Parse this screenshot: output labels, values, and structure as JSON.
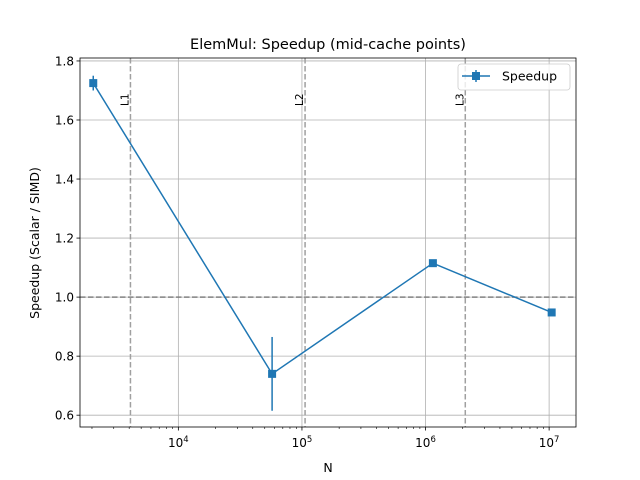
{
  "chart_data": {
    "type": "line",
    "title": "ElemMul: Speedup (mid-cache points)",
    "xlabel": "N",
    "ylabel": "Speedup (Scalar / SIMD)",
    "xscale": "log",
    "xlim": [
      1600,
      16500000
    ],
    "ylim": [
      0.56,
      1.81
    ],
    "grid": true,
    "legend_position": "top-right",
    "x_ticks": [
      {
        "value": 10000,
        "base": "10",
        "exp": "4"
      },
      {
        "value": 100000,
        "base": "10",
        "exp": "5"
      },
      {
        "value": 1000000,
        "base": "10",
        "exp": "6"
      },
      {
        "value": 10000000,
        "base": "10",
        "exp": "7"
      }
    ],
    "y_ticks": [
      {
        "value": 0.6,
        "label": "0.6"
      },
      {
        "value": 0.8,
        "label": "0.8"
      },
      {
        "value": 1.0,
        "label": "1.0"
      },
      {
        "value": 1.2,
        "label": "1.2"
      },
      {
        "value": 1.4,
        "label": "1.4"
      },
      {
        "value": 1.6,
        "label": "1.6"
      },
      {
        "value": 1.8,
        "label": "1.8"
      }
    ],
    "series": [
      {
        "name": "Speedup",
        "color": "#1f77b4",
        "marker": "square",
        "x": [
          2048,
          57344,
          1146880,
          10485760
        ],
        "y": [
          1.725,
          0.74,
          1.115,
          0.948
        ],
        "yerr": [
          0.025,
          0.125,
          0.01,
          0.01
        ]
      }
    ],
    "reference_line": {
      "y": 1.0,
      "style": "dashed",
      "color": "#808080"
    },
    "cache_lines": [
      {
        "label": "L1",
        "x": 4096
      },
      {
        "label": "L2",
        "x": 106000
      },
      {
        "label": "L3",
        "x": 2097152
      }
    ]
  }
}
